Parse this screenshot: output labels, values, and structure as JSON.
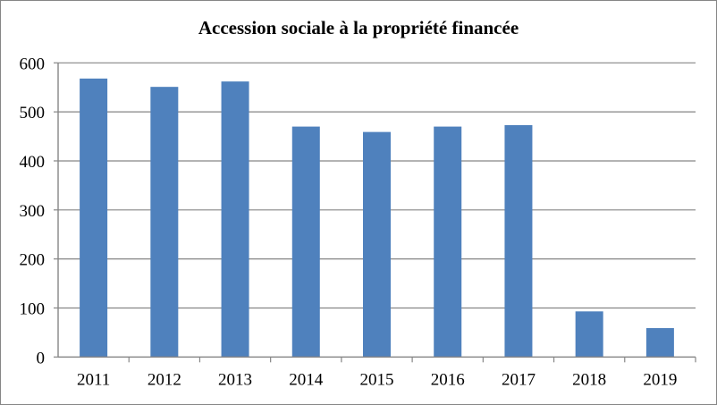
{
  "chart_data": {
    "type": "bar",
    "title": "Accession sociale à la propriété financée",
    "categories": [
      "2011",
      "2012",
      "2013",
      "2014",
      "2015",
      "2016",
      "2017",
      "2018",
      "2019"
    ],
    "values": [
      568,
      551,
      562,
      470,
      459,
      470,
      473,
      93,
      59
    ],
    "xlabel": "",
    "ylabel": "",
    "ylim": [
      0,
      600
    ],
    "yticks": [
      "0",
      "100",
      "200",
      "300",
      "400",
      "500",
      "600"
    ],
    "grid": true,
    "legend": "none",
    "bar_color": "#4F81BD"
  }
}
